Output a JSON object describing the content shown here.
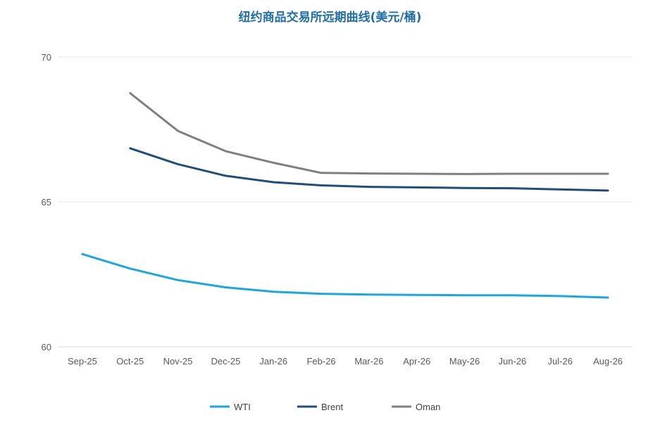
{
  "chart_data": {
    "type": "line",
    "title": "纽约商品交易所远期曲线(美元/桶)",
    "xlabel": "",
    "ylabel": "",
    "categories": [
      "Sep-25",
      "Oct-25",
      "Nov-25",
      "Dec-25",
      "Jan-26",
      "Feb-26",
      "Mar-26",
      "Apr-26",
      "May-26",
      "Jun-26",
      "Jul-26",
      "Aug-26"
    ],
    "ylim": [
      60,
      70
    ],
    "yticks": [
      "60",
      "65",
      "70"
    ],
    "grid": true,
    "legend_position": "bottom",
    "series": [
      {
        "name": "WTI",
        "color": "#1aa7e0",
        "values": [
          63.2,
          62.7,
          62.3,
          62.05,
          61.9,
          61.83,
          61.8,
          61.79,
          61.78,
          61.78,
          61.75,
          61.7
        ]
      },
      {
        "name": "Brent",
        "color": "#1f4e79",
        "values": [
          null,
          66.85,
          66.3,
          65.9,
          65.68,
          65.57,
          65.52,
          65.5,
          65.48,
          65.47,
          65.43,
          65.39
        ]
      },
      {
        "name": "Oman",
        "color": "#7f7f7f",
        "values": [
          null,
          68.75,
          67.45,
          66.75,
          66.35,
          66.0,
          65.98,
          65.97,
          65.96,
          65.97,
          65.97,
          65.97
        ]
      }
    ]
  }
}
